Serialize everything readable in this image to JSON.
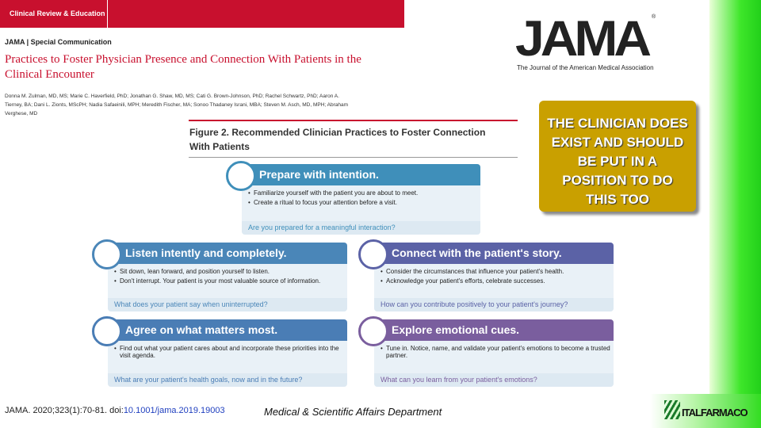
{
  "header": {
    "badge": "Clinical Review & Education",
    "section": "JAMA | Special Communication",
    "title": "Practices to Foster Physician Presence and Connection With Patients in the Clinical Encounter",
    "authors": "Donna M. Zulman, MD, MS; Marie C. Haverfield, PhD; Jonathan G. Shaw, MD, MS; Cati G. Brown-Johnson, PhD; Rachel Schwartz, PhD; Aaron A. Tierney, BA; Dani L. Zionts, MScPH; Nadia Safaeinili, MPH; Meredith Fischer, MA; Sonoo Thadaney Israni, MBA; Steven M. Asch, MD, MPH; Abraham Verghese, MD"
  },
  "logo": {
    "name": "JAMA",
    "mark": "®",
    "subtitle": "The Journal of the American Medical Association"
  },
  "callout": "THE CLINICIAN DOES EXIST AND SHOULD BE PUT IN A POSITION TO DO THIS TOO",
  "figure": {
    "title": "Figure 2. Recommended Clinician Practices to Foster Connection With Patients",
    "cards": [
      {
        "heading": "Prepare with intention.",
        "color": "#3f8fba",
        "bullets": [
          "Familiarize yourself with the patient you are about to meet.",
          "Create a ritual to focus your attention before a visit."
        ],
        "question": "Are you prepared for a meaningful interaction?"
      },
      {
        "heading": "Listen intently and completely.",
        "color": "#4a86b8",
        "bullets": [
          "Sit down, lean forward, and position yourself to listen.",
          "Don't interrupt. Your patient is your most valuable source of information."
        ],
        "question": "What does your patient say when uninterrupted?"
      },
      {
        "heading": "Connect with the patient's story.",
        "color": "#5b62a6",
        "bullets": [
          "Consider the circumstances that influence your patient's health.",
          "Acknowledge your patient's efforts, celebrate successes."
        ],
        "question": "How can you contribute positively to your patient's journey?"
      },
      {
        "heading": "Agree on what matters most.",
        "color": "#4a7db5",
        "bullets": [
          "Find out what your patient cares about and incorporate these priorities into the visit agenda."
        ],
        "question": "What are your patient's health goals, now and in the future?"
      },
      {
        "heading": "Explore emotional cues.",
        "color": "#7a5e9e",
        "bullets": [
          "Tune in. Notice, name, and validate your patient's emotions to become a trusted partner."
        ],
        "question": "What can you learn from your patient's emotions?"
      }
    ]
  },
  "footer": {
    "citation": "JAMA. 2020;323(1):70-81. doi:",
    "doi": "10.1001/jama.2019.19003",
    "department": "Medical & Scientific Affairs Department",
    "brand": "ITALFARMACO"
  }
}
